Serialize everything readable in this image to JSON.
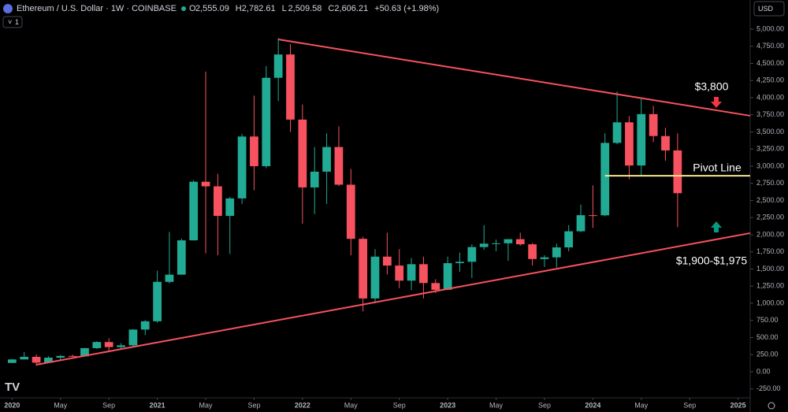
{
  "header": {
    "symbol": "Ethereum / U.S. Dollar · 1W · COINBASE",
    "interval": "1",
    "currency": "USD",
    "ohlc": [
      {
        "label": "O",
        "value": "2,555.09"
      },
      {
        "label": "H",
        "value": "2,782.61"
      },
      {
        "label": "L",
        "value": "2,509.58"
      },
      {
        "label": "C",
        "value": "2,606.21"
      }
    ],
    "change": "+50.63 (+1.98%)"
  },
  "chart_data": {
    "type": "candlestick",
    "x": [
      "2020-01",
      "2020-02",
      "2020-03",
      "2020-04",
      "2020-05",
      "2020-06",
      "2020-07",
      "2020-08",
      "2020-09",
      "2020-10",
      "2020-11",
      "2020-12",
      "2021-01",
      "2021-02",
      "2021-03",
      "2021-04",
      "2021-05",
      "2021-06",
      "2021-07",
      "2021-08",
      "2021-09",
      "2021-10",
      "2021-11",
      "2021-12",
      "2022-01",
      "2022-02",
      "2022-03",
      "2022-04",
      "2022-05",
      "2022-06",
      "2022-07",
      "2022-08",
      "2022-09",
      "2022-10",
      "2022-11",
      "2022-12",
      "2023-01",
      "2023-02",
      "2023-03",
      "2023-04",
      "2023-05",
      "2023-06",
      "2023-07",
      "2023-08",
      "2023-09",
      "2023-10",
      "2023-11",
      "2023-12",
      "2024-01",
      "2024-02",
      "2024-03",
      "2024-04",
      "2024-05",
      "2024-06",
      "2024-07",
      "2024-08"
    ],
    "open": [
      129,
      180,
      218,
      133,
      206,
      231,
      226,
      345,
      434,
      360,
      386,
      616,
      737,
      1312,
      1417,
      1918,
      2773,
      2706,
      2275,
      2530,
      3433,
      3000,
      4290,
      4630,
      3680,
      2690,
      2920,
      3280,
      2730,
      1940,
      1070,
      1680,
      1550,
      1330,
      1570,
      1295,
      1196,
      1585,
      1605,
      1820,
      1870,
      1875,
      1935,
      1860,
      1645,
      1670,
      1815,
      2050,
      2285,
      2283,
      3340,
      3640,
      3010,
      3760,
      3440,
      3230
    ],
    "high": [
      185,
      288,
      253,
      227,
      246,
      250,
      348,
      445,
      488,
      418,
      623,
      755,
      1475,
      2041,
      1943,
      2797,
      4380,
      2890,
      2550,
      3470,
      4030,
      4460,
      4870,
      4780,
      3900,
      3280,
      3480,
      3580,
      2960,
      1970,
      1790,
      2030,
      1790,
      1660,
      1680,
      1350,
      1680,
      1740,
      1860,
      2140,
      1930,
      1930,
      2030,
      1880,
      1700,
      1870,
      2140,
      2440,
      2720,
      3480,
      4090,
      3730,
      3980,
      3880,
      3560,
      3480
    ],
    "low": [
      127,
      180,
      90,
      131,
      177,
      216,
      222,
      335,
      308,
      334,
      372,
      535,
      715,
      1290,
      1435,
      1913,
      1730,
      1700,
      1720,
      2450,
      2650,
      2970,
      3950,
      3500,
      2160,
      2300,
      2450,
      2710,
      1700,
      880,
      1000,
      1420,
      1220,
      1190,
      1070,
      1150,
      1190,
      1460,
      1370,
      1780,
      1760,
      1620,
      1840,
      1550,
      1530,
      1520,
      1760,
      2040,
      2100,
      2270,
      3320,
      2810,
      2860,
      3350,
      3080,
      2110
    ],
    "close": [
      180,
      218,
      133,
      206,
      231,
      226,
      345,
      434,
      360,
      386,
      616,
      737,
      1312,
      1417,
      1918,
      2773,
      2706,
      2275,
      2530,
      3433,
      3000,
      4290,
      4630,
      3680,
      2690,
      2920,
      3280,
      2730,
      1940,
      1070,
      1680,
      1550,
      1330,
      1570,
      1295,
      1196,
      1585,
      1605,
      1820,
      1870,
      1875,
      1935,
      1860,
      1645,
      1670,
      1815,
      2050,
      2285,
      2283,
      3340,
      3640,
      3010,
      3760,
      3440,
      3230,
      2606
    ],
    "up_color": "#22ab94",
    "down_color": "#f7525f",
    "xlim": [
      "2019-12",
      "2025-02"
    ],
    "xticks": [
      {
        "value": "2020-01",
        "label": "2020"
      },
      {
        "value": "2020-05",
        "label": "May"
      },
      {
        "value": "2020-09",
        "label": "Sep"
      },
      {
        "value": "2021-01",
        "label": "2021"
      },
      {
        "value": "2021-05",
        "label": "May"
      },
      {
        "value": "2021-09",
        "label": "Sep"
      },
      {
        "value": "2022-01",
        "label": "2022"
      },
      {
        "value": "2022-05",
        "label": "May"
      },
      {
        "value": "2022-09",
        "label": "Sep"
      },
      {
        "value": "2023-01",
        "label": "2023"
      },
      {
        "value": "2023-05",
        "label": "May"
      },
      {
        "value": "2023-09",
        "label": "Sep"
      },
      {
        "value": "2024-01",
        "label": "2024"
      },
      {
        "value": "2024-05",
        "label": "May"
      },
      {
        "value": "2024-09",
        "label": "Sep"
      },
      {
        "value": "2025-01",
        "label": "2025"
      }
    ],
    "ylim": [
      -380,
      5425
    ],
    "yticks": [
      {
        "value": -250,
        "label": "-250.00"
      },
      {
        "value": 0,
        "label": "0.00"
      },
      {
        "value": 250,
        "label": "250.00"
      },
      {
        "value": 500,
        "label": "500.00"
      },
      {
        "value": 750,
        "label": "750.00"
      },
      {
        "value": 1000,
        "label": "1,000.00"
      },
      {
        "value": 1250,
        "label": "1,250.00"
      },
      {
        "value": 1500,
        "label": "1,500.00"
      },
      {
        "value": 1750,
        "label": "1,750.00"
      },
      {
        "value": 2000,
        "label": "2,000.00"
      },
      {
        "value": 2250,
        "label": "2,250.00"
      },
      {
        "value": 2500,
        "label": "2,500.00"
      },
      {
        "value": 2750,
        "label": "2,750.00"
      },
      {
        "value": 3000,
        "label": "3,000.00"
      },
      {
        "value": 3250,
        "label": "3,250.00"
      },
      {
        "value": 3500,
        "label": "3,500.00"
      },
      {
        "value": 3750,
        "label": "3,750.00"
      },
      {
        "value": 4000,
        "label": "4,000.00"
      },
      {
        "value": 4250,
        "label": "4,250.00"
      },
      {
        "value": 4500,
        "label": "4,500.00"
      },
      {
        "value": 4750,
        "label": "4,750.00"
      },
      {
        "value": 5000,
        "label": "5,000.00"
      }
    ],
    "trendlines": [
      {
        "color": "#f7525f",
        "points": [
          [
            "2021-11",
            4850
          ],
          [
            "2025-02",
            3736
          ]
        ]
      },
      {
        "color": "#f7525f",
        "points": [
          [
            "2020-03",
            103
          ],
          [
            "2025-02",
            2023
          ]
        ]
      },
      {
        "color": "#f5e68c",
        "points": [
          [
            "2024-02",
            2860
          ],
          [
            "2025-02",
            2860
          ]
        ]
      }
    ],
    "annotations": [
      "$3,800",
      "Pivot Line",
      "$1,900-$1,975"
    ]
  }
}
